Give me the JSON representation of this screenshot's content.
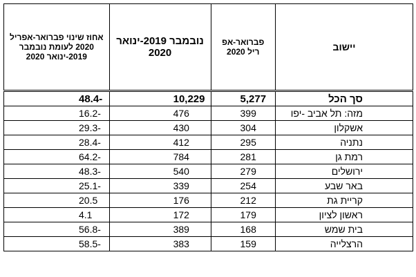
{
  "table": {
    "header": [
      "יישוב",
      "פברואר-אפ ריל 2020",
      "נובמבר 2019-ינואר 2020",
      "אחוז שינוי פברואר-אפריל 2020 לעומת נובמבר 2019-ינואר 2020"
    ],
    "rows": [
      [
        "סך הכל",
        "5,277",
        "10,229",
        "48.4-"
      ],
      [
        "מזה:  תל אביב -יפו",
        "399",
        "476",
        "16.2-"
      ],
      [
        "אשקלון",
        "304",
        "430",
        "29.3-"
      ],
      [
        "נתניה",
        "295",
        "412",
        "28.4-"
      ],
      [
        "רמת גן",
        "281",
        "784",
        "64.2-"
      ],
      [
        "ירושלים",
        "279",
        "540",
        "48.3-"
      ],
      [
        "באר שבע",
        "254",
        "339",
        "25.1-"
      ],
      [
        "קריית גת",
        "212",
        "176",
        "20.5"
      ],
      [
        "ראשון לציון",
        "179",
        "172",
        "4.1"
      ],
      [
        "בית שמש",
        "168",
        "389",
        "56.8-"
      ],
      [
        "הרצלייה",
        "159",
        "383",
        "58.5-"
      ]
    ]
  }
}
